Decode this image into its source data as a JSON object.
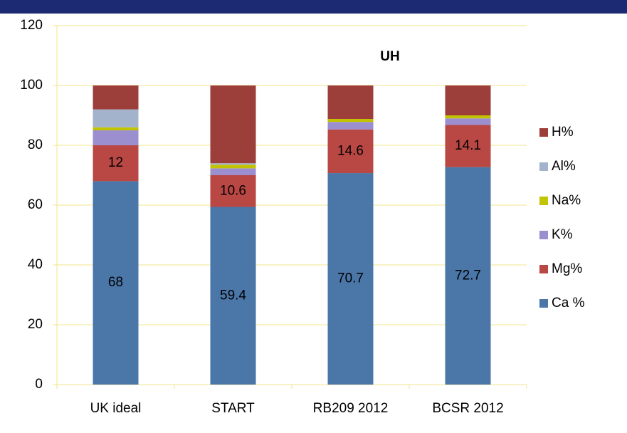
{
  "chart_data": {
    "type": "stacked_bar",
    "title": "UH",
    "categories": [
      "UK ideal",
      "START",
      "RB209 2012",
      "BCSR 2012"
    ],
    "series": [
      {
        "name": "Ca %",
        "color": "#4a76a8",
        "values": [
          68,
          59.4,
          70.7,
          72.7
        ],
        "show_labels": true
      },
      {
        "name": "Mg%",
        "color": "#b94743",
        "values": [
          12,
          10.6,
          14.6,
          14.1
        ],
        "show_labels": true
      },
      {
        "name": "K%",
        "color": "#9b8fd0",
        "values": [
          5,
          2.3,
          2.5,
          2.2
        ],
        "show_labels": false
      },
      {
        "name": "Na%",
        "color": "#c2c400",
        "values": [
          1,
          1.2,
          1,
          1
        ],
        "show_labels": false
      },
      {
        "name": "Al%",
        "color": "#a3b3cc",
        "values": [
          6,
          0.5,
          0,
          0
        ],
        "show_labels": false
      },
      {
        "name": "H%",
        "color": "#9c3f3b",
        "values": [
          8,
          26,
          11.2,
          10
        ],
        "show_labels": false
      }
    ],
    "ylim": [
      0,
      120
    ],
    "yticks": [
      0,
      20,
      40,
      60,
      80,
      100,
      120
    ],
    "grid": true,
    "legend": "right"
  }
}
